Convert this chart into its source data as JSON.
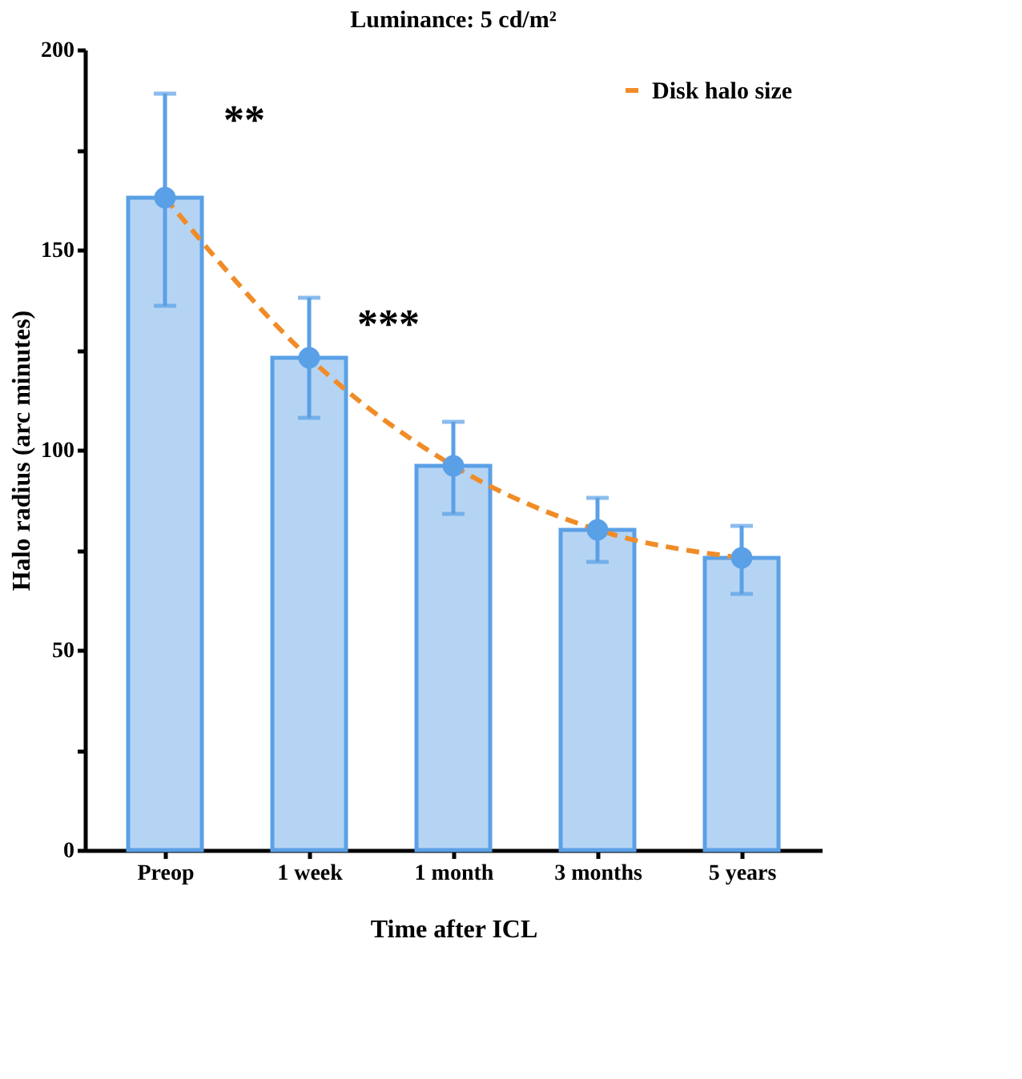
{
  "chart_data": {
    "type": "bar",
    "title": "Luminance: 5 cd/m²",
    "xlabel": "Time after ICL",
    "ylabel": "Halo radius (arc minutes)",
    "categories": [
      "Preop",
      "1 week",
      "1 month",
      "3 months",
      "5 years"
    ],
    "series": [
      {
        "type": "bar",
        "color": "#5aa0e6",
        "values": [
          163,
          123,
          96,
          80,
          73
        ],
        "errors": [
          [
            136,
            189
          ],
          [
            108,
            138
          ],
          [
            84,
            107
          ],
          [
            72,
            88
          ],
          [
            64,
            81
          ]
        ]
      },
      {
        "type": "line",
        "name": "Disk halo size",
        "color": "#f08c28",
        "values": [
          163,
          123,
          96,
          80,
          73
        ],
        "marker": "circle",
        "line_style": "dashed"
      }
    ],
    "ylim": [
      0,
      200
    ],
    "yticks": [
      0,
      {
        "value": 25,
        "label": null
      },
      50,
      {
        "value": 75,
        "label": null
      },
      100,
      {
        "value": 125,
        "label": null
      },
      150,
      {
        "value": 175,
        "label": null
      },
      200
    ],
    "grid": false,
    "legend": "top right",
    "annotations": [
      "**",
      "***"
    ]
  }
}
